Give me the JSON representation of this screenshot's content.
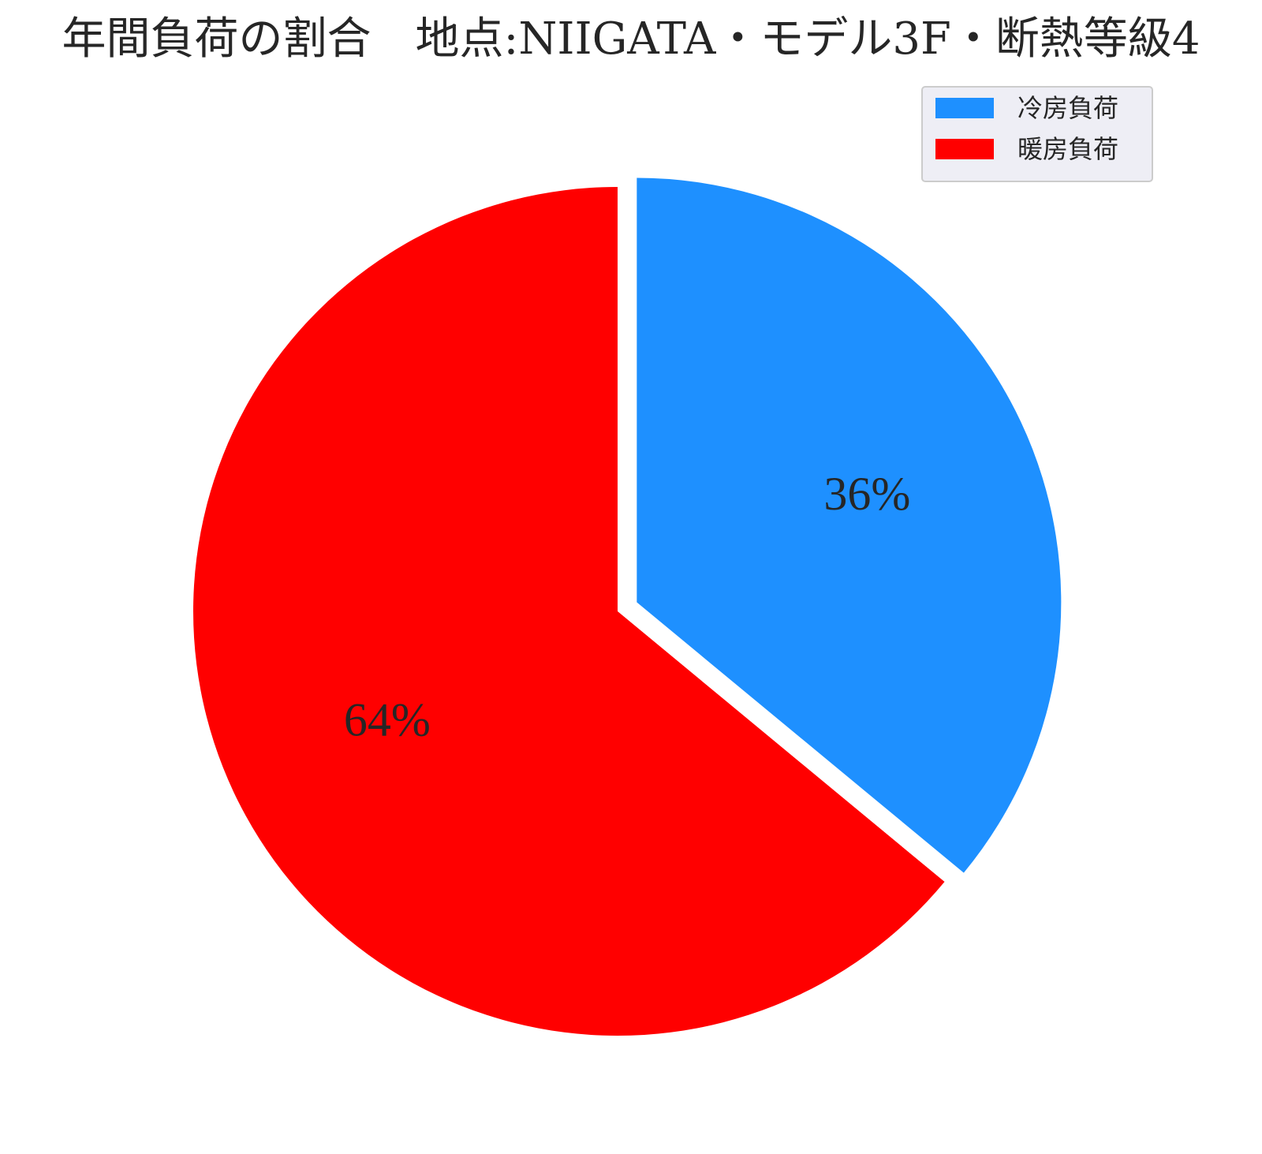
{
  "chart_data": {
    "type": "pie",
    "title": "年間負荷の割合　地点:NIIGATA・モデル3F・断熱等級4",
    "slices": [
      {
        "label": "冷房負荷",
        "value": 36,
        "pct_label": "36%",
        "color": "#1E90FF",
        "exploded": true
      },
      {
        "label": "暖房負荷",
        "value": 64,
        "pct_label": "64%",
        "color": "#FF0000",
        "exploded": false
      }
    ],
    "start_angle": "90 (12 o'clock)",
    "direction": "clockwise",
    "legend": {
      "position": "upper-right",
      "entries": [
        "冷房負荷",
        "暖房負荷"
      ]
    }
  }
}
